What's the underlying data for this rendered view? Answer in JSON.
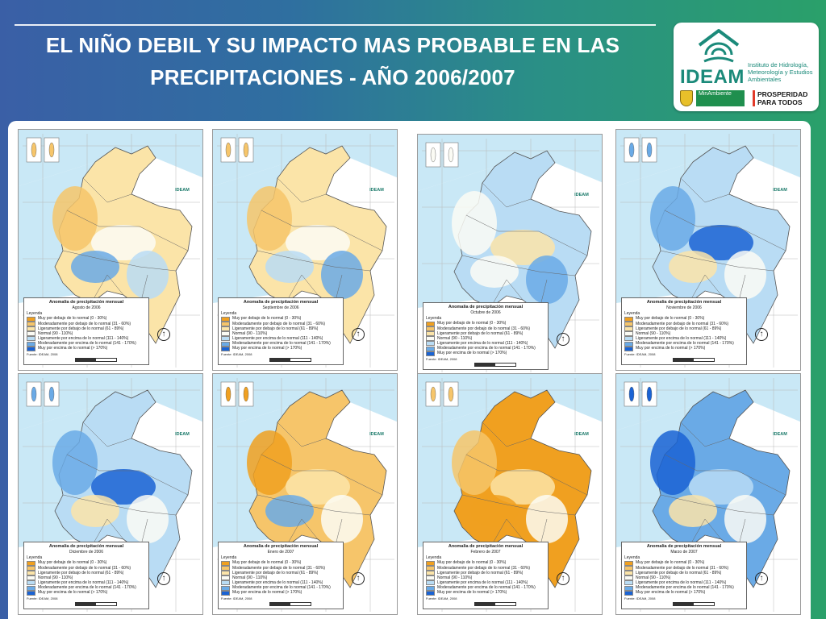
{
  "header": {
    "title_line1": "EL NIÑO DEBIL Y SU IMPACTO MAS PROBABLE EN LAS",
    "title_line2": "PRECIPITACIONES - AÑO 2006/2007"
  },
  "logo": {
    "name": "IDEAM",
    "description": "Instituto de Hidrología, Meteorología y Estudios Ambientales",
    "ministry": "MinAmbiente",
    "slogan": "PROSPERIDAD PARA TODOS"
  },
  "colors": {
    "dry_strong": "#f0a020",
    "dry_moderate": "#f6c56a",
    "dry_light": "#fbe4a8",
    "normal": "#fbfbf4",
    "wet_light": "#b9dcf4",
    "wet_moderate": "#6aaae6",
    "wet_strong": "#1a63d4",
    "sea": "#c9e8f6"
  },
  "legend": {
    "title": "Anomalia de precipitación mensual",
    "heading": "Leyenda",
    "source": "Fuente: IDEAM, 2008",
    "categories": [
      "Muy por debajo de lo normal (0 - 30%)",
      "Moderadamente por debajo de lo normal (31 - 60%)",
      "Ligeramente por debajo de lo normal (61 - 89%)",
      "Normal (90 - 110%)",
      "Ligeramente por encima de lo normal (111 - 140%)",
      "Moderadamente por encima de lo normal (141 - 170%)",
      "Muy por encima de lo normal (> 170%)"
    ]
  },
  "maps": [
    {
      "month": "Agosto de 2006",
      "dominant": "dry_light",
      "patches": [
        "dry_moderate",
        "normal",
        "wet_light",
        "wet_moderate"
      ]
    },
    {
      "month": "Septiembre de 2006",
      "dominant": "dry_light",
      "patches": [
        "dry_moderate",
        "normal",
        "wet_moderate",
        "wet_light"
      ]
    },
    {
      "month": "Octubre de 2006",
      "dominant": "wet_light",
      "patches": [
        "normal",
        "dry_light",
        "wet_moderate",
        "normal"
      ]
    },
    {
      "month": "Noviembre de 2006",
      "dominant": "wet_light",
      "patches": [
        "wet_moderate",
        "wet_strong",
        "normal",
        "dry_light"
      ]
    },
    {
      "month": "Diciembre de 2006",
      "dominant": "wet_light",
      "patches": [
        "wet_moderate",
        "wet_strong",
        "normal",
        "dry_light"
      ]
    },
    {
      "month": "Enero de 2007",
      "dominant": "dry_moderate",
      "patches": [
        "dry_strong",
        "dry_light",
        "normal",
        "wet_moderate"
      ]
    },
    {
      "month": "Febrero de 2007",
      "dominant": "dry_strong",
      "patches": [
        "dry_moderate",
        "dry_light",
        "normal",
        "dry_strong"
      ]
    },
    {
      "month": "Marzo de 2007",
      "dominant": "wet_moderate",
      "patches": [
        "wet_strong",
        "wet_light",
        "normal",
        "dry_light"
      ]
    }
  ]
}
